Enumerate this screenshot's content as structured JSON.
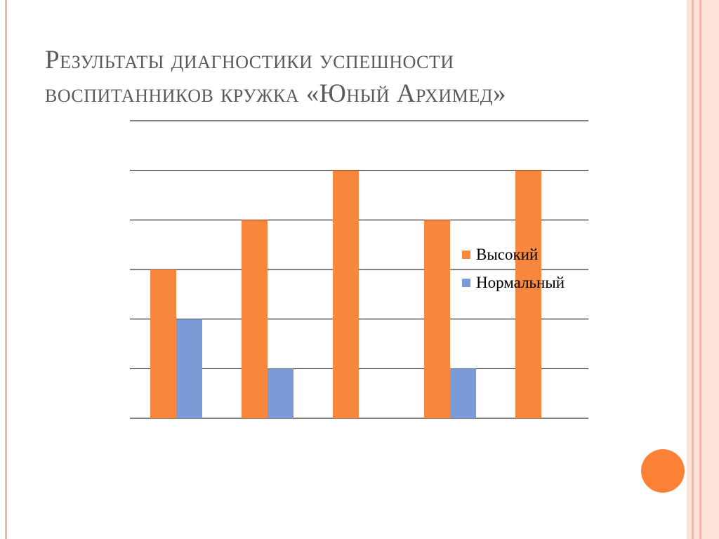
{
  "slide": {
    "title_line1": "Результаты диагностики успешности",
    "title_line2": "воспитанников кружка «Юный Архимед»"
  },
  "colors": {
    "title": "#5a5a5a",
    "series_high": "#f7873c",
    "series_normal": "#7b9bd7",
    "accent_circle": "#fb8137",
    "frame_light": "#fde4d8",
    "frame_mid": "#f4b9a6",
    "gridline": "#000000"
  },
  "chart_data": {
    "type": "bar",
    "categories": [
      "",
      "",
      "",
      "",
      ""
    ],
    "ylim": [
      0,
      6
    ],
    "grid": true,
    "legend": "right",
    "series": [
      {
        "name": "Высокий",
        "values": [
          3,
          4,
          5,
          4,
          5
        ]
      },
      {
        "name": "Нормальный",
        "values": [
          2,
          1,
          0,
          1,
          0
        ]
      }
    ]
  }
}
